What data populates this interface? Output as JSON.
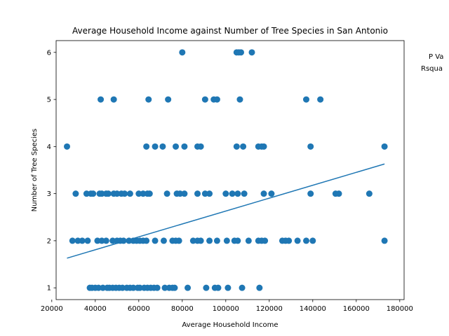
{
  "chart_data": {
    "type": "scatter",
    "title": "Average Household Income against Number of Tree Species in San Antonio",
    "xlabel": "Average Household Income",
    "ylabel": "Number of Tree Species",
    "xlim": [
      22000,
      182000
    ],
    "ylim": [
      0.75,
      6.25
    ],
    "xticks": [
      20000,
      40000,
      60000,
      80000,
      100000,
      120000,
      140000,
      160000,
      180000
    ],
    "yticks": [
      1,
      2,
      3,
      4,
      5,
      6
    ],
    "grid": false,
    "annotations": [
      "P Va",
      "Rsqua"
    ],
    "point_color": "#1f77b4",
    "series": [
      {
        "points": [
          [
            27000,
            4
          ],
          [
            80000,
            6
          ],
          [
            105000,
            6
          ],
          [
            106000,
            6
          ],
          [
            107000,
            6
          ],
          [
            112000,
            6
          ],
          [
            42500,
            5
          ],
          [
            48500,
            5
          ],
          [
            64500,
            5
          ],
          [
            73500,
            5
          ],
          [
            90500,
            5
          ],
          [
            94500,
            5
          ],
          [
            96000,
            5
          ],
          [
            106500,
            5
          ],
          [
            137000,
            5
          ],
          [
            143500,
            5
          ],
          [
            63500,
            4
          ],
          [
            67500,
            4
          ],
          [
            71000,
            4
          ],
          [
            77000,
            4
          ],
          [
            81000,
            4
          ],
          [
            87000,
            4
          ],
          [
            88500,
            4
          ],
          [
            105000,
            4
          ],
          [
            108000,
            4
          ],
          [
            115000,
            4
          ],
          [
            116500,
            4
          ],
          [
            117500,
            4
          ],
          [
            139000,
            4
          ],
          [
            173000,
            4
          ],
          [
            31000,
            3
          ],
          [
            36000,
            3
          ],
          [
            38000,
            3
          ],
          [
            39000,
            3
          ],
          [
            42000,
            3
          ],
          [
            43000,
            3
          ],
          [
            45000,
            3
          ],
          [
            46000,
            3
          ],
          [
            48500,
            3
          ],
          [
            50000,
            3
          ],
          [
            52000,
            3
          ],
          [
            53500,
            3
          ],
          [
            56000,
            3
          ],
          [
            60000,
            3
          ],
          [
            62000,
            3
          ],
          [
            64000,
            3
          ],
          [
            65000,
            3
          ],
          [
            73000,
            3
          ],
          [
            77500,
            3
          ],
          [
            79000,
            3
          ],
          [
            81000,
            3
          ],
          [
            87000,
            3
          ],
          [
            90500,
            3
          ],
          [
            92500,
            3
          ],
          [
            100000,
            3
          ],
          [
            103000,
            3
          ],
          [
            105500,
            3
          ],
          [
            108500,
            3
          ],
          [
            117500,
            3
          ],
          [
            121000,
            3
          ],
          [
            139000,
            3
          ],
          [
            150500,
            3
          ],
          [
            152000,
            3
          ],
          [
            166000,
            3
          ],
          [
            29500,
            2
          ],
          [
            32000,
            2
          ],
          [
            34000,
            2
          ],
          [
            36500,
            2
          ],
          [
            41000,
            2
          ],
          [
            43000,
            2
          ],
          [
            45000,
            2
          ],
          [
            48000,
            2
          ],
          [
            50000,
            2
          ],
          [
            51500,
            2
          ],
          [
            53000,
            2
          ],
          [
            55500,
            2
          ],
          [
            57500,
            2
          ],
          [
            59000,
            2
          ],
          [
            60500,
            2
          ],
          [
            62000,
            2
          ],
          [
            63500,
            2
          ],
          [
            67500,
            2
          ],
          [
            71500,
            2
          ],
          [
            75500,
            2
          ],
          [
            77000,
            2
          ],
          [
            78500,
            2
          ],
          [
            85000,
            2
          ],
          [
            87000,
            2
          ],
          [
            88500,
            2
          ],
          [
            92500,
            2
          ],
          [
            96000,
            2
          ],
          [
            100500,
            2
          ],
          [
            104000,
            2
          ],
          [
            105500,
            2
          ],
          [
            110500,
            2
          ],
          [
            115000,
            2
          ],
          [
            116500,
            2
          ],
          [
            118000,
            2
          ],
          [
            126000,
            2
          ],
          [
            127500,
            2
          ],
          [
            129000,
            2
          ],
          [
            133000,
            2
          ],
          [
            137000,
            2
          ],
          [
            140000,
            2
          ],
          [
            173000,
            2
          ],
          [
            37500,
            1
          ],
          [
            38500,
            1
          ],
          [
            40000,
            1
          ],
          [
            41500,
            1
          ],
          [
            43500,
            1
          ],
          [
            45500,
            1
          ],
          [
            46500,
            1
          ],
          [
            48000,
            1
          ],
          [
            49500,
            1
          ],
          [
            51000,
            1
          ],
          [
            52500,
            1
          ],
          [
            54500,
            1
          ],
          [
            56000,
            1
          ],
          [
            57500,
            1
          ],
          [
            59500,
            1
          ],
          [
            60500,
            1
          ],
          [
            62500,
            1
          ],
          [
            64000,
            1
          ],
          [
            65500,
            1
          ],
          [
            67000,
            1
          ],
          [
            68500,
            1
          ],
          [
            72000,
            1
          ],
          [
            74000,
            1
          ],
          [
            75500,
            1
          ],
          [
            76500,
            1
          ],
          [
            82500,
            1
          ],
          [
            91000,
            1
          ],
          [
            95000,
            1
          ],
          [
            96500,
            1
          ],
          [
            101000,
            1
          ],
          [
            107500,
            1
          ],
          [
            115500,
            1
          ]
        ]
      }
    ],
    "trend_line": {
      "color": "#1f77b4",
      "start": [
        27000,
        1.63
      ],
      "end": [
        173000,
        3.63
      ]
    }
  }
}
